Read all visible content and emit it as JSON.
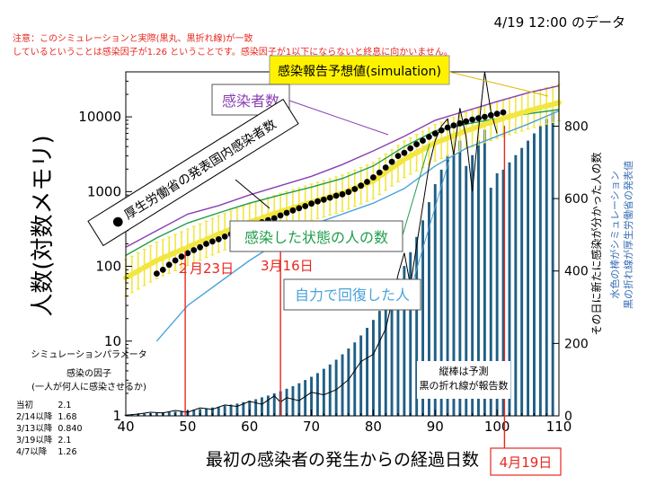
{
  "header": {
    "snapshot_label": "4/19 12:00 のデータ",
    "note_lines": [
      "注意：このシミュレーションと実際(黒丸、黒折れ線)が一致",
      "しているということは感染因子が1.26 ということです。感染因子が1以下にならないと終息に向かいません。"
    ]
  },
  "chart_data": {
    "type": "line",
    "xlabel": "最初の感染者の発生からの経過日数",
    "ylabel_left": "人数(対数メモリ)",
    "ylabel_right": "その日に新たに感染が分かった人の数",
    "right_legend": [
      "水色の棒がシミュレーション",
      "黒の折れ線が厚生労働省の発表値"
    ],
    "xlim": [
      40,
      110
    ],
    "x_ticks": [
      40,
      50,
      60,
      70,
      80,
      90,
      100,
      110
    ],
    "ylim_left": [
      1,
      40000
    ],
    "y_left_scale": "log",
    "y_left_ticks": [
      1,
      10,
      100,
      1000,
      10000
    ],
    "ylim_right": [
      0,
      950
    ],
    "y_right_ticks": [
      0,
      200,
      400,
      600,
      800
    ],
    "series": [
      {
        "name": "感染報告予想値(simulation)",
        "color": "#f2e640",
        "x": [
          40,
          45,
          50,
          55,
          60,
          65,
          70,
          75,
          80,
          85,
          90,
          95,
          100,
          105,
          110
        ],
        "y": [
          70,
          120,
          180,
          270,
          390,
          540,
          720,
          950,
          1400,
          2700,
          4500,
          6500,
          9000,
          12000,
          15500
        ]
      },
      {
        "name": "感染者数",
        "color": "#8a3fb3",
        "x": [
          40,
          45,
          50,
          55,
          60,
          65,
          70,
          75,
          80,
          85,
          90,
          95,
          100,
          105,
          110
        ],
        "y": [
          180,
          300,
          500,
          650,
          900,
          1200,
          1600,
          2300,
          3500,
          5500,
          9000,
          12000,
          16000,
          21000,
          26000
        ]
      },
      {
        "name": "感染した状態の人の数",
        "color": "#1f9e4a",
        "x": [
          40,
          45,
          50,
          55,
          60,
          65,
          70,
          75,
          80,
          85,
          90,
          95,
          100,
          105,
          110
        ],
        "y": [
          140,
          240,
          380,
          520,
          700,
          900,
          1150,
          1500,
          2200,
          4000,
          6500,
          8000,
          9500,
          11000,
          12500
        ]
      },
      {
        "name": "自力で回復した人",
        "color": "#4ba3d9",
        "x": [
          45,
          50,
          55,
          60,
          65,
          70,
          75,
          80,
          85,
          90,
          95,
          100,
          105,
          110
        ],
        "y": [
          10,
          30,
          60,
          120,
          220,
          360,
          500,
          700,
          1100,
          2200,
          3800,
          5500,
          8000,
          12000
        ]
      },
      {
        "name": "厚生労働省の発表国内感染者数",
        "x": [
          45,
          46,
          47,
          48,
          49,
          50,
          51,
          52,
          53,
          54,
          55,
          56,
          57,
          58,
          59,
          60,
          61,
          62,
          63,
          64,
          65,
          66,
          67,
          68,
          69,
          70,
          71,
          72,
          73,
          74,
          75,
          76,
          77,
          78,
          79,
          80,
          81,
          82,
          83,
          84,
          85,
          86,
          87,
          88,
          89,
          90,
          91,
          92,
          93,
          94,
          95,
          96,
          97,
          98,
          99,
          100,
          101
        ],
        "y": [
          80,
          90,
          105,
          120,
          135,
          150,
          165,
          180,
          200,
          215,
          230,
          250,
          270,
          290,
          310,
          340,
          365,
          390,
          415,
          440,
          480,
          520,
          560,
          600,
          640,
          690,
          740,
          780,
          830,
          880,
          920,
          990,
          1080,
          1200,
          1350,
          1550,
          1800,
          2100,
          2500,
          3000,
          3300,
          3800,
          4300,
          4800,
          5400,
          6000,
          6600,
          7200,
          7700,
          8200,
          8700,
          9200,
          9600,
          10000,
          10500,
          11000,
          11500
        ]
      },
      {
        "name": "黒の折れ線が厚生労働省の発表値",
        "x": [
          40,
          42,
          44,
          46,
          48,
          50,
          52,
          54,
          56,
          58,
          60,
          62,
          64,
          65,
          66,
          68,
          70,
          72,
          74,
          76,
          78,
          80,
          82,
          84,
          85,
          86,
          87,
          88,
          89,
          90,
          91,
          92,
          93,
          94,
          95,
          96,
          97,
          98,
          99,
          100
        ],
        "y": [
          2,
          5,
          10,
          8,
          15,
          10,
          22,
          18,
          30,
          26,
          40,
          32,
          55,
          38,
          50,
          42,
          65,
          58,
          72,
          100,
          150,
          170,
          240,
          390,
          450,
          360,
          470,
          580,
          690,
          760,
          800,
          820,
          720,
          850,
          770,
          620,
          790,
          950,
          840,
          780
        ]
      }
    ],
    "bars": {
      "name": "水色の棒がシミュレーション",
      "x": [
        40,
        41,
        42,
        43,
        44,
        45,
        46,
        47,
        48,
        49,
        50,
        51,
        52,
        53,
        54,
        55,
        56,
        57,
        58,
        59,
        60,
        61,
        62,
        63,
        64,
        65,
        66,
        67,
        68,
        69,
        70,
        71,
        72,
        73,
        74,
        75,
        76,
        77,
        78,
        79,
        80,
        81,
        82,
        83,
        84,
        85,
        86,
        87,
        88,
        89,
        90,
        91,
        92,
        93,
        94,
        95,
        96,
        97,
        98,
        99,
        100,
        101,
        102,
        103,
        104,
        105,
        106,
        107,
        108,
        109
      ],
      "values": [
        3,
        4,
        5,
        6,
        7,
        8,
        10,
        11,
        12,
        14,
        15,
        17,
        19,
        21,
        23,
        25,
        28,
        31,
        34,
        38,
        42,
        46,
        51,
        56,
        62,
        68,
        75,
        82,
        90,
        99,
        108,
        118,
        130,
        142,
        155,
        170,
        186,
        203,
        222,
        243,
        265,
        290,
        317,
        347,
        379,
        414,
        452,
        494,
        540,
        590,
        640,
        680,
        720,
        720,
        760,
        690,
        720,
        760,
        790,
        630,
        670,
        680,
        700,
        720,
        740,
        760,
        780,
        800,
        820,
        840
      ]
    },
    "annotations": {
      "first_date": "２月23日",
      "second_date": "3月16日",
      "third_date": "4月19日",
      "bar_note_lines": [
        "縦棒は予測",
        "黒の折れ線が報告数"
      ],
      "sim_label": "感染報告予想値(simulation)",
      "infected_label": "感染者数",
      "state_label": "感染した状態の人の数",
      "recovered_label": "自力で回復した人",
      "reported_label": "● 厚生労働省の発表国内感染者数"
    },
    "grid": false,
    "legend": "inline"
  },
  "params": {
    "title": "シミュレーションパラメータ",
    "factor_heading": "感染の因子",
    "factor_sub": "(一人が何人に感染させるか)",
    "rows": [
      {
        "label": "当初",
        "value": "2.1"
      },
      {
        "label": "2/14以降",
        "value": "1.68"
      },
      {
        "label": "3/13以降",
        "value": "0.840"
      },
      {
        "label": "3/19以降",
        "value": "2.1"
      },
      {
        "label": "4/7以降",
        "value": "1.26"
      }
    ]
  },
  "colors": {
    "sim": "#f2e640",
    "sim_box": "#fff200",
    "infected": "#8a3fb3",
    "state": "#1f9e4a",
    "recovered": "#4ba3d9",
    "bars": "#1f5f85",
    "date_line": "#e8271f",
    "note": "#e8271f"
  }
}
